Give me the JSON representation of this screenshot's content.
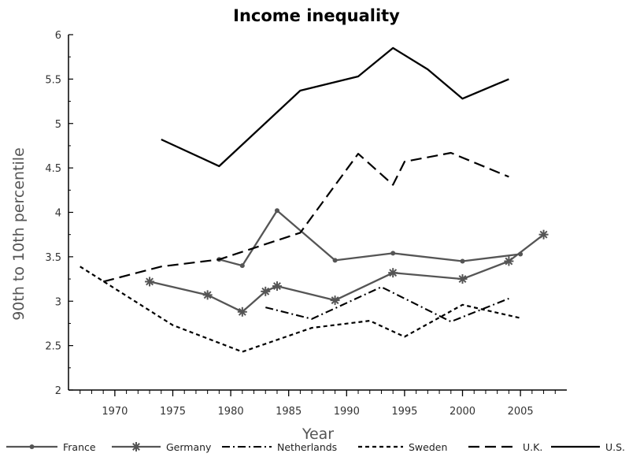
{
  "chart_data": {
    "type": "line",
    "title": "Income inequality",
    "xlabel": "Year",
    "ylabel": "90th to 10th percentile",
    "xlim": [
      1966,
      2009
    ],
    "ylim": [
      2,
      6
    ],
    "x_ticks": [
      1970,
      1975,
      1980,
      1985,
      1990,
      1995,
      2000,
      2005
    ],
    "y_ticks": [
      2,
      2.5,
      3,
      3.5,
      4,
      4.5,
      5,
      5.5,
      6
    ],
    "grid": false,
    "legend_position": "bottom",
    "series": [
      {
        "name": "France",
        "style": "solid-dot",
        "color": "#555555",
        "x": [
          1979,
          1981,
          1984,
          1989,
          1994,
          2000,
          2005
        ],
        "y": [
          3.47,
          3.4,
          4.02,
          3.46,
          3.54,
          3.45,
          3.53
        ]
      },
      {
        "name": "Germany",
        "style": "solid-asterisk",
        "color": "#555555",
        "x": [
          1973,
          1978,
          1981,
          1983,
          1984,
          1989,
          1994,
          2000,
          2004,
          2007
        ],
        "y": [
          3.22,
          3.07,
          2.88,
          3.11,
          3.17,
          3.01,
          3.32,
          3.25,
          3.45,
          3.75
        ]
      },
      {
        "name": "Netherlands",
        "style": "dash-dot",
        "color": "#000000",
        "x": [
          1983,
          1987,
          1993,
          1999,
          2004
        ],
        "y": [
          2.93,
          2.8,
          3.16,
          2.77,
          3.03
        ]
      },
      {
        "name": "Sweden",
        "style": "short-dash",
        "color": "#000000",
        "x": [
          1967,
          1975,
          1981,
          1987,
          1992,
          1995,
          2000,
          2005
        ],
        "y": [
          3.39,
          2.73,
          2.43,
          2.7,
          2.78,
          2.6,
          2.96,
          2.81
        ]
      },
      {
        "name": "U.K.",
        "style": "long-dash",
        "color": "#000000",
        "x": [
          1969,
          1974,
          1979,
          1986,
          1991,
          1994,
          1995,
          1999,
          2004
        ],
        "y": [
          3.22,
          3.39,
          3.47,
          3.77,
          4.66,
          4.31,
          4.57,
          4.67,
          4.4
        ]
      },
      {
        "name": "U.S.",
        "style": "solid",
        "color": "#000000",
        "x": [
          1974,
          1979,
          1986,
          1991,
          1994,
          1997,
          2000,
          2004
        ],
        "y": [
          4.82,
          4.52,
          5.37,
          5.53,
          5.85,
          5.61,
          5.28,
          5.5
        ]
      }
    ]
  }
}
